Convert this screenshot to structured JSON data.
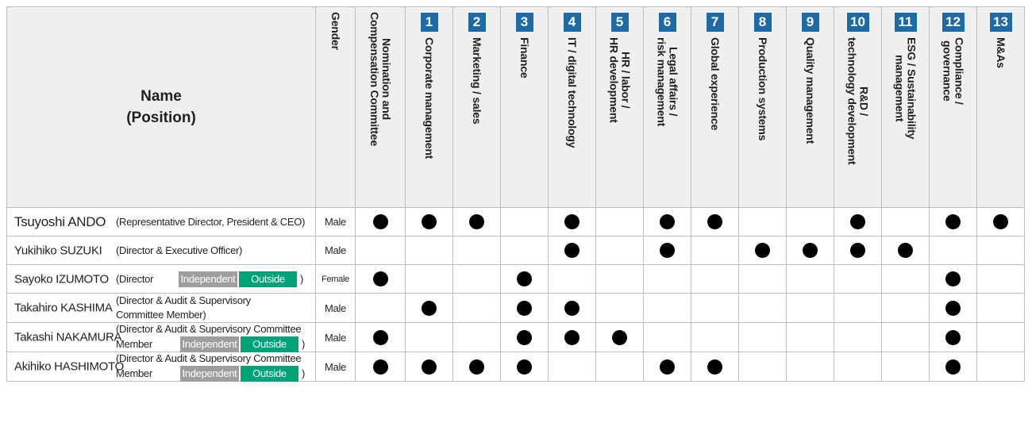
{
  "header": {
    "name_line1": "Name",
    "name_line2": "(Position)",
    "gender": "Gender",
    "nomination": "Nomination and\nCompensation Committee"
  },
  "skills": [
    {
      "num": "1",
      "label": "Corporate management"
    },
    {
      "num": "2",
      "label": "Marketing / sales"
    },
    {
      "num": "3",
      "label": "Finance"
    },
    {
      "num": "4",
      "label": "IT / digital technology"
    },
    {
      "num": "5",
      "label": "HR / labor /\nHR development"
    },
    {
      "num": "6",
      "label": "Legal affairs /\nrisk management"
    },
    {
      "num": "7",
      "label": "Global experience"
    },
    {
      "num": "8",
      "label": "Production systems"
    },
    {
      "num": "9",
      "label": "Quality management"
    },
    {
      "num": "10",
      "label": "R&D /\ntechnology development"
    },
    {
      "num": "11",
      "label": "ESG / Sustainability\nmanagement"
    },
    {
      "num": "12",
      "label": "Compliance /\ngovernance"
    },
    {
      "num": "13",
      "label": "M&As"
    }
  ],
  "tags": {
    "independent": "Independent",
    "outside": "Outside"
  },
  "rows": [
    {
      "name": "Tsuyoshi ANDO",
      "position": "(Representative Director, President & CEO)",
      "gender": "Male",
      "nomination": true,
      "skills": [
        true,
        true,
        false,
        true,
        false,
        true,
        true,
        false,
        false,
        true,
        false,
        true,
        true
      ]
    },
    {
      "name": "Yukihiko SUZUKI",
      "position": "(Director & Executive Officer)",
      "gender": "Male",
      "nomination": false,
      "skills": [
        false,
        false,
        false,
        true,
        false,
        true,
        false,
        true,
        true,
        true,
        true,
        false,
        false
      ]
    },
    {
      "name": "Sayoko IZUMOTO",
      "position_prefix": "(Director",
      "position_suffix": ")",
      "gender": "Female",
      "nomination": true,
      "skills": [
        false,
        false,
        true,
        false,
        false,
        false,
        false,
        false,
        false,
        false,
        false,
        true,
        false
      ]
    },
    {
      "name": "Takahiro KASHIMA",
      "position_line1": "(Director & Audit & Supervisory",
      "position_line2": "Committee Member)",
      "gender": "Male",
      "nomination": false,
      "skills": [
        true,
        false,
        true,
        true,
        false,
        false,
        false,
        false,
        false,
        false,
        false,
        true,
        false
      ]
    },
    {
      "name": "Takashi NAKAMURA",
      "position_line1": "(Director & Audit & Supervisory Committee",
      "position_prefix": "Member",
      "position_suffix": ")",
      "gender": "Male",
      "nomination": true,
      "skills": [
        false,
        false,
        true,
        true,
        true,
        false,
        false,
        false,
        false,
        false,
        false,
        true,
        false
      ]
    },
    {
      "name": "Akihiko HASHIMOTO",
      "position_line1": "(Director & Audit & Supervisory Committee",
      "position_prefix": "Member",
      "position_suffix": ")",
      "gender": "Male",
      "nomination": true,
      "skills": [
        true,
        true,
        true,
        false,
        false,
        true,
        true,
        false,
        false,
        false,
        false,
        true,
        false
      ]
    }
  ],
  "colors": {
    "badge": "#1d6aa5",
    "header_bg": "#efeff0",
    "independent": "#9e9e9e",
    "outside": "#00a27a",
    "border": "#bdbdbd"
  }
}
